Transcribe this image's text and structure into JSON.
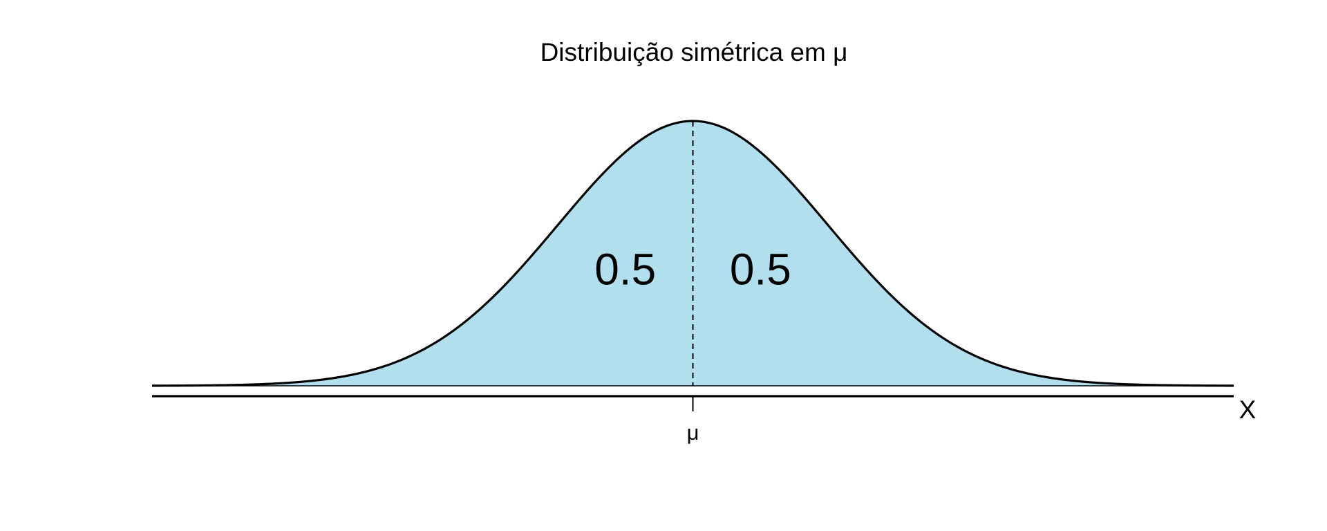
{
  "chart_data": {
    "type": "area",
    "title": "Distribuição simétrica em μ",
    "xlabel": "X",
    "ylabel": "",
    "distribution": "normal",
    "mean": 0,
    "sd": 1,
    "xlim": [
      -4,
      4
    ],
    "center_tick_label": "μ",
    "regions": [
      {
        "side": "left",
        "label": "0.5",
        "probability": 0.5
      },
      {
        "side": "right",
        "label": "0.5",
        "probability": 0.5
      }
    ],
    "grid": false,
    "legend": "none"
  },
  "colors": {
    "fill": "#b2dfed",
    "line": "#000000",
    "background": "#ffffff"
  }
}
